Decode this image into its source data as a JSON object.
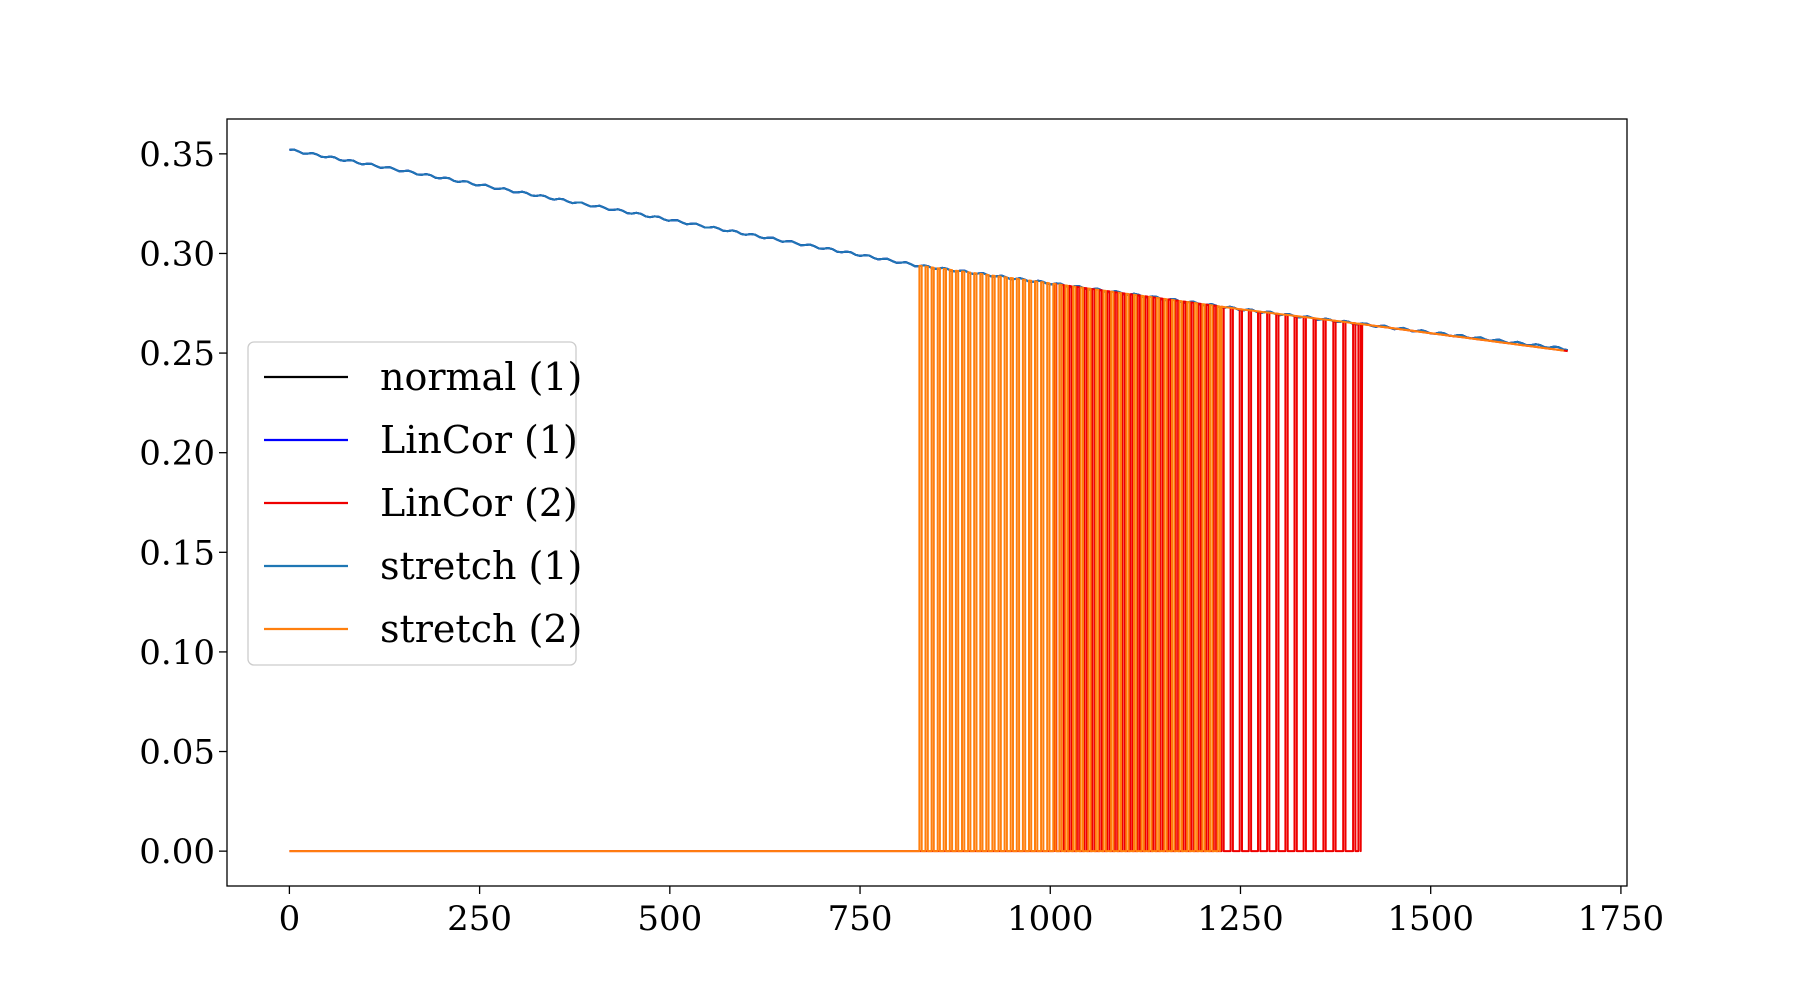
{
  "chart_data": {
    "type": "line",
    "title": "",
    "xlabel": "",
    "ylabel": "",
    "xlim": [
      -82,
      1758
    ],
    "ylim": [
      -0.0175,
      0.3675
    ],
    "xticks": [
      0,
      250,
      500,
      750,
      1000,
      1250,
      1500,
      1750
    ],
    "xtick_labels": [
      "0",
      "250",
      "500",
      "750",
      "1000",
      "1250",
      "1500",
      "1750"
    ],
    "yticks": [
      0.0,
      0.05,
      0.1,
      0.15,
      0.2,
      0.25,
      0.3,
      0.35
    ],
    "ytick_labels": [
      "0.00",
      "0.05",
      "0.10",
      "0.15",
      "0.20",
      "0.25",
      "0.30",
      "0.35"
    ],
    "grid": false,
    "legend_position": "center-left",
    "series": [
      {
        "name": "normal (1)",
        "color": "#000000",
        "kind": "smooth",
        "points": [
          [
            0,
            0.352
          ],
          [
            825,
            0.294
          ],
          [
            1000,
            0.285
          ],
          [
            1250,
            0.272
          ],
          [
            1400,
            0.265
          ],
          [
            1680,
            0.252
          ]
        ]
      },
      {
        "name": "LinCor (1)",
        "color": "#0000ff",
        "kind": "smooth",
        "points": [
          [
            0,
            0.352
          ],
          [
            825,
            0.294
          ],
          [
            1000,
            0.285
          ],
          [
            1250,
            0.272
          ],
          [
            1400,
            0.265
          ],
          [
            1680,
            0.252
          ]
        ]
      },
      {
        "name": "LinCor (2)",
        "color": "#ee0000",
        "kind": "spiky",
        "points": [
          [
            0,
            0.0
          ],
          [
            825,
            0.0
          ],
          [
            825,
            0.294
          ],
          [
            1000,
            0.285
          ],
          [
            1250,
            0.272
          ],
          [
            1400,
            0.265
          ],
          [
            1680,
            0.251
          ]
        ],
        "spikes": [
          1005,
          1015,
          1025,
          1035,
          1045,
          1055,
          1065,
          1075,
          1085,
          1095,
          1105,
          1115,
          1125,
          1135,
          1145,
          1155,
          1165,
          1175,
          1185,
          1195,
          1205,
          1215,
          1225,
          1237,
          1249,
          1261,
          1273,
          1285,
          1297,
          1309,
          1321,
          1333,
          1346,
          1359,
          1372,
          1385,
          1398,
          1405
        ]
      },
      {
        "name": "stretch (1)",
        "color": "#1f77b4",
        "kind": "smooth",
        "points": [
          [
            0,
            0.352
          ],
          [
            825,
            0.294
          ],
          [
            1000,
            0.285
          ],
          [
            1250,
            0.272
          ],
          [
            1400,
            0.265
          ],
          [
            1680,
            0.252
          ]
        ]
      },
      {
        "name": "stretch (2)",
        "color": "#ff7f0e",
        "kind": "spiky",
        "points": [
          [
            0,
            0.0
          ],
          [
            825,
            0.0
          ],
          [
            825,
            0.294
          ],
          [
            1000,
            0.285
          ],
          [
            1250,
            0.272
          ],
          [
            1400,
            0.265
          ],
          [
            1680,
            0.251
          ]
        ],
        "spikes": [
          828,
          836,
          844,
          852,
          860,
          868,
          876,
          884,
          892,
          900,
          908,
          916,
          924,
          932,
          940,
          948,
          956,
          964,
          972,
          980,
          988,
          996,
          1004,
          1012,
          1020,
          1030,
          1040,
          1050,
          1060,
          1070,
          1080,
          1090,
          1100,
          1110,
          1120,
          1130,
          1140,
          1150,
          1160,
          1170,
          1180,
          1190,
          1200,
          1210,
          1220
        ]
      }
    ]
  }
}
